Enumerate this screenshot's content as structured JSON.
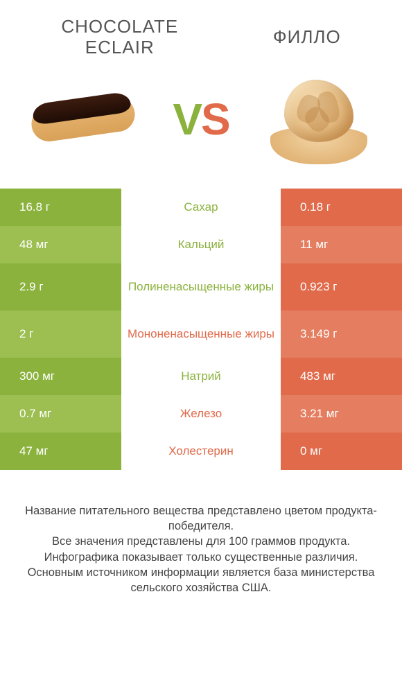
{
  "titles": {
    "left": "CHOCOLATE\nECLAIR",
    "right": "ФИЛЛО"
  },
  "vs": {
    "v": "V",
    "s": "S"
  },
  "colors": {
    "green": "#8bb23d",
    "green_alt": "#9dbf52",
    "orange": "#e06a4a",
    "orange_alt": "#e57e60",
    "text": "#555555",
    "footer_text": "#444444",
    "background": "#ffffff"
  },
  "rows": [
    {
      "left": "16.8 г",
      "label": "Сахар",
      "right": "0.18 г",
      "winner": "left",
      "tall": false
    },
    {
      "left": "48 мг",
      "label": "Кальций",
      "right": "11 мг",
      "winner": "left",
      "tall": false
    },
    {
      "left": "2.9 г",
      "label": "Полиненасыщенные жиры",
      "right": "0.923 г",
      "winner": "left",
      "tall": true
    },
    {
      "left": "2 г",
      "label": "Мононенасыщенные жиры",
      "right": "3.149 г",
      "winner": "right",
      "tall": true
    },
    {
      "left": "300 мг",
      "label": "Натрий",
      "right": "483 мг",
      "winner": "left",
      "tall": false
    },
    {
      "left": "0.7 мг",
      "label": "Железо",
      "right": "3.21 мг",
      "winner": "right",
      "tall": false
    },
    {
      "left": "47 мг",
      "label": "Холестерин",
      "right": "0 мг",
      "winner": "right",
      "tall": false
    }
  ],
  "footer": [
    "Название питательного вещества представлено цветом продукта-победителя.",
    "Все значения представлены для 100 граммов продукта.",
    "Инфографика показывает только существенные различия.",
    "Основным источником информации является база министерства сельского хозяйства США."
  ]
}
